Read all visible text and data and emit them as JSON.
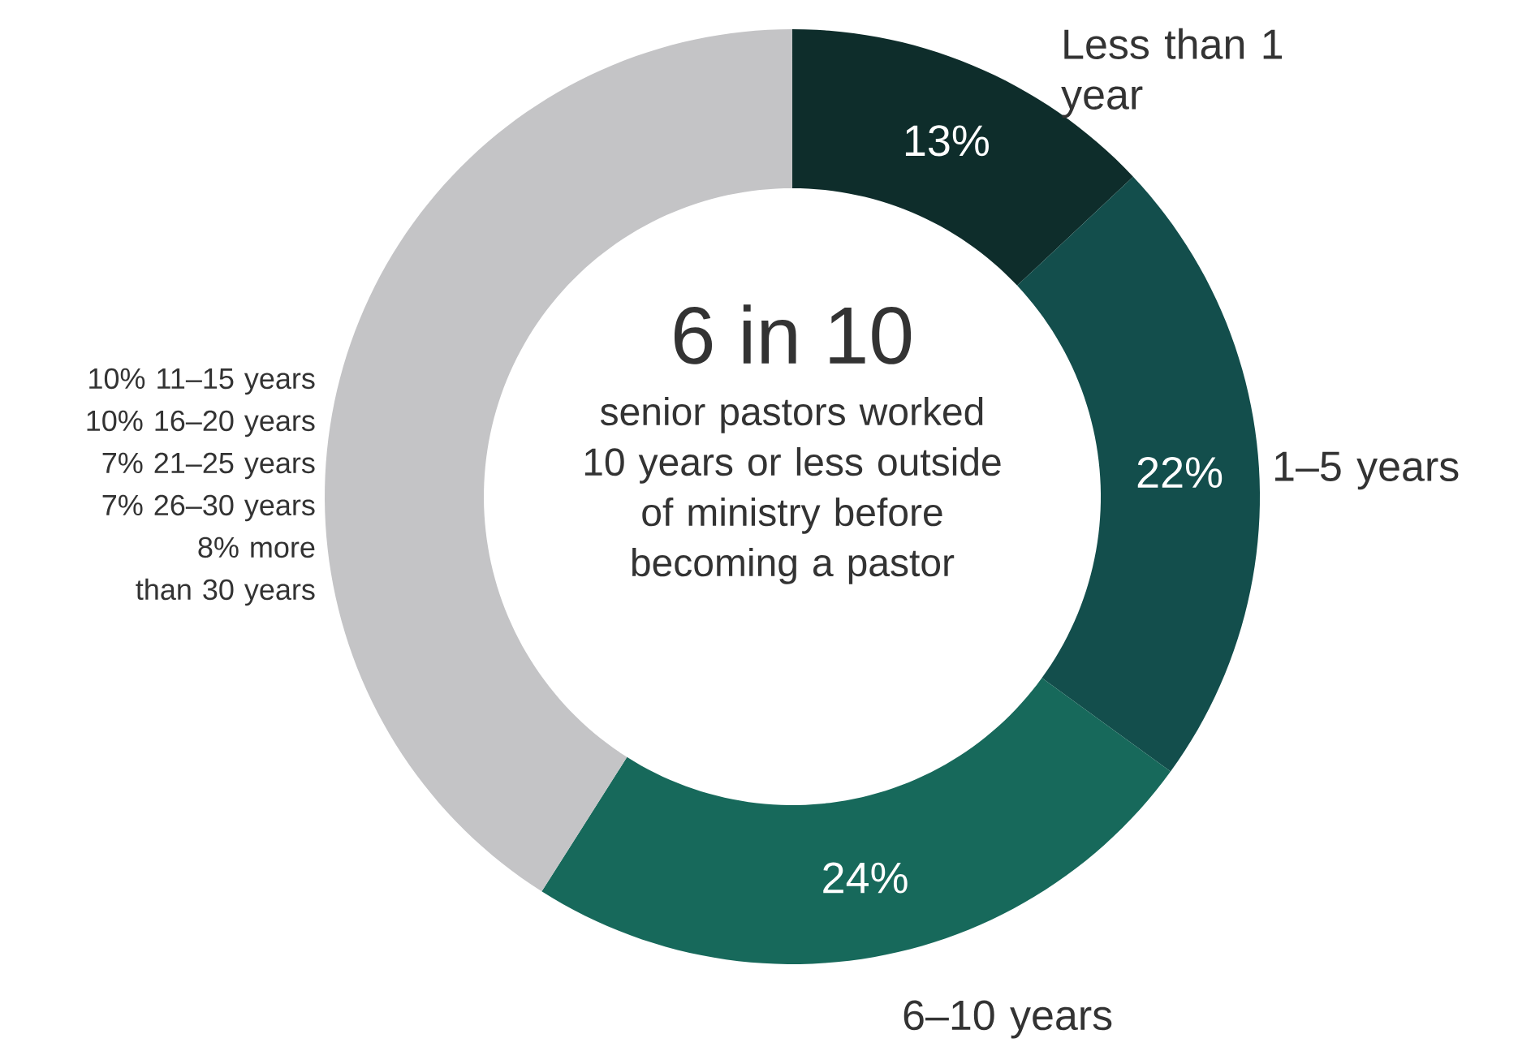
{
  "chart_data": {
    "type": "donut",
    "title": "6 in 10",
    "subtitle": "senior pastors worked 10 years or less outside of ministry before becoming a pastor",
    "categories": [
      "Less than 1 year",
      "1–5 years",
      "6–10 years",
      null
    ],
    "values": [
      13,
      22,
      24,
      41
    ],
    "colors": [
      "#0e2d2b",
      "#134e4c",
      "#17695b",
      "#c4c4c6"
    ],
    "value_labels": [
      "13%",
      "22%",
      "24%",
      null
    ],
    "annotations": [
      "10% 11–15 years",
      "10% 16–20 years",
      "7% 21–25 years",
      "7% 26–30 years",
      "8% more than 30 years"
    ]
  }
}
